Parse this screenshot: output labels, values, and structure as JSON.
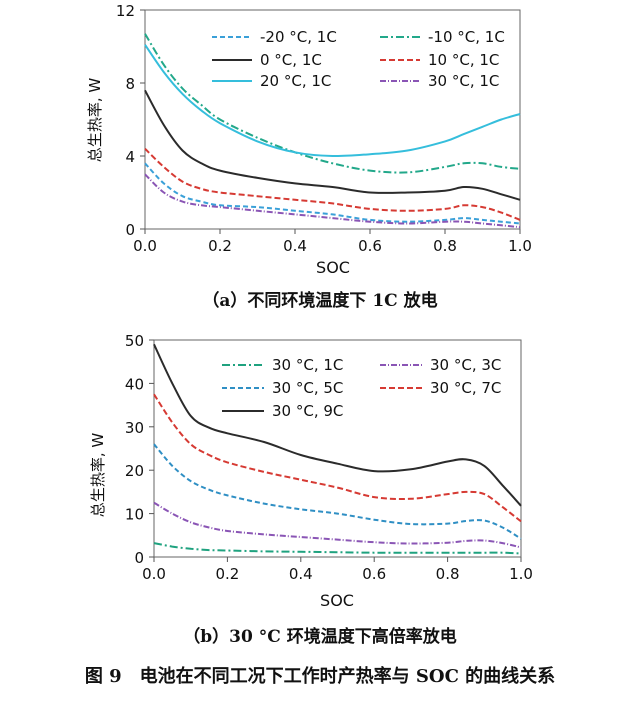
{
  "figure_caption": "图 9　电池在不同工况下工作时产热率与 SOC 的曲线关系",
  "chart_data": [
    {
      "type": "line",
      "panel_caption": "（a）不同环境温度下 1C 放电",
      "xlabel": "SOC",
      "ylabel": "总生热率, W",
      "xlim": [
        0,
        1.0
      ],
      "ylim": [
        0,
        12
      ],
      "x_ticks": [
        "0.0",
        "0.2",
        "0.4",
        "0.6",
        "0.8",
        "1.0"
      ],
      "y_ticks": [
        "0",
        "4",
        "8",
        "12"
      ],
      "grid": false,
      "legend_position": "top",
      "x": [
        0,
        0.05,
        0.1,
        0.15,
        0.2,
        0.3,
        0.4,
        0.5,
        0.6,
        0.7,
        0.8,
        0.85,
        0.9,
        0.95,
        1.0
      ],
      "series": [
        {
          "name": "-20 °C, 1C",
          "color": "#3aa0d8",
          "dash": "5,3",
          "values": [
            3.6,
            2.5,
            1.8,
            1.5,
            1.3,
            1.2,
            1.0,
            0.8,
            0.5,
            0.4,
            0.5,
            0.6,
            0.5,
            0.4,
            0.3
          ]
        },
        {
          "name": "-10 °C, 1C",
          "color": "#22a88a",
          "dash": "8,3,2,3",
          "values": [
            10.7,
            9.0,
            7.7,
            6.8,
            6.0,
            5.0,
            4.2,
            3.6,
            3.2,
            3.1,
            3.4,
            3.6,
            3.6,
            3.4,
            3.3
          ]
        },
        {
          "name": "0 °C, 1C",
          "color": "#2b2b2b",
          "dash": "",
          "values": [
            7.6,
            5.7,
            4.3,
            3.6,
            3.2,
            2.8,
            2.5,
            2.3,
            2.0,
            2.0,
            2.1,
            2.3,
            2.2,
            1.9,
            1.6
          ]
        },
        {
          "name": "10 °C, 1C",
          "color": "#d63a33",
          "dash": "6,3",
          "values": [
            4.4,
            3.4,
            2.6,
            2.2,
            2.0,
            1.8,
            1.6,
            1.4,
            1.1,
            1.0,
            1.1,
            1.3,
            1.2,
            0.9,
            0.5
          ]
        },
        {
          "name": "20 °C, 1C",
          "color": "#35bedc",
          "dash": "",
          "values": [
            10.1,
            8.6,
            7.4,
            6.5,
            5.8,
            4.8,
            4.2,
            4.0,
            4.1,
            4.3,
            4.8,
            5.2,
            5.6,
            6.0,
            6.3
          ]
        },
        {
          "name": "30 °C, 1C",
          "color": "#8a55b5",
          "dash": "6,2,1,2",
          "values": [
            3.0,
            2.0,
            1.5,
            1.3,
            1.2,
            1.0,
            0.8,
            0.6,
            0.4,
            0.3,
            0.4,
            0.4,
            0.3,
            0.2,
            0.1
          ]
        }
      ]
    },
    {
      "type": "line",
      "panel_caption": "（b）30 °C 环境温度下高倍率放电",
      "xlabel": "SOC",
      "ylabel": "总生热率, W",
      "xlim": [
        0,
        1.0
      ],
      "ylim": [
        0,
        50
      ],
      "x_ticks": [
        "0.0",
        "0.2",
        "0.4",
        "0.6",
        "0.8",
        "1.0"
      ],
      "y_ticks": [
        "0",
        "10",
        "20",
        "30",
        "40",
        "50"
      ],
      "grid": false,
      "legend_position": "top",
      "x": [
        0,
        0.05,
        0.1,
        0.15,
        0.2,
        0.3,
        0.4,
        0.5,
        0.6,
        0.7,
        0.8,
        0.85,
        0.9,
        0.95,
        1.0
      ],
      "series": [
        {
          "name": "30 °C, 1C",
          "color": "#1fa27f",
          "dash": "8,3,2,3",
          "values": [
            3.2,
            2.4,
            1.9,
            1.6,
            1.5,
            1.3,
            1.2,
            1.1,
            1.0,
            1.0,
            1.0,
            1.0,
            1.0,
            1.0,
            0.8
          ]
        },
        {
          "name": "30 °C, 3C",
          "color": "#8a55b5",
          "dash": "6,2,1,2",
          "values": [
            12.5,
            10.0,
            8.0,
            6.8,
            6.0,
            5.2,
            4.6,
            4.0,
            3.4,
            3.1,
            3.3,
            3.7,
            3.8,
            3.2,
            2.2
          ]
        },
        {
          "name": "30 °C, 5C",
          "color": "#2f8fc4",
          "dash": "5,3",
          "values": [
            26.0,
            21.0,
            17.5,
            15.5,
            14.2,
            12.3,
            11.0,
            10.0,
            8.6,
            7.6,
            7.7,
            8.3,
            8.4,
            6.8,
            4.2
          ]
        },
        {
          "name": "30 °C, 7C",
          "color": "#d63a33",
          "dash": "6,3",
          "values": [
            37.5,
            31.0,
            26.0,
            23.5,
            21.8,
            19.6,
            17.8,
            16.0,
            13.8,
            13.4,
            14.5,
            15.0,
            14.5,
            11.5,
            8.2
          ]
        },
        {
          "name": "30 °C, 9C",
          "color": "#2b2b2b",
          "dash": "",
          "values": [
            49.0,
            40.0,
            32.5,
            29.8,
            28.5,
            26.5,
            23.5,
            21.5,
            19.8,
            20.2,
            22.0,
            22.5,
            21.0,
            16.5,
            11.8
          ]
        }
      ]
    }
  ]
}
